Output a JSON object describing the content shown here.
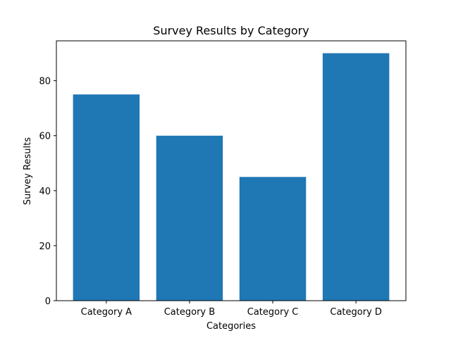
{
  "chart_data": {
    "type": "bar",
    "title": "Survey Results by Category",
    "xlabel": "Categories",
    "ylabel": "Survey Results",
    "categories": [
      "Category A",
      "Category B",
      "Category C",
      "Category D"
    ],
    "values": [
      75,
      60,
      45,
      90
    ],
    "ylim": [
      0,
      94.5
    ],
    "yticks": [
      "0",
      "20",
      "40",
      "60",
      "80"
    ],
    "ytick_values": [
      0,
      20,
      40,
      60,
      80
    ],
    "bar_color": "#1f77b4",
    "grid": false,
    "legend": "none"
  }
}
